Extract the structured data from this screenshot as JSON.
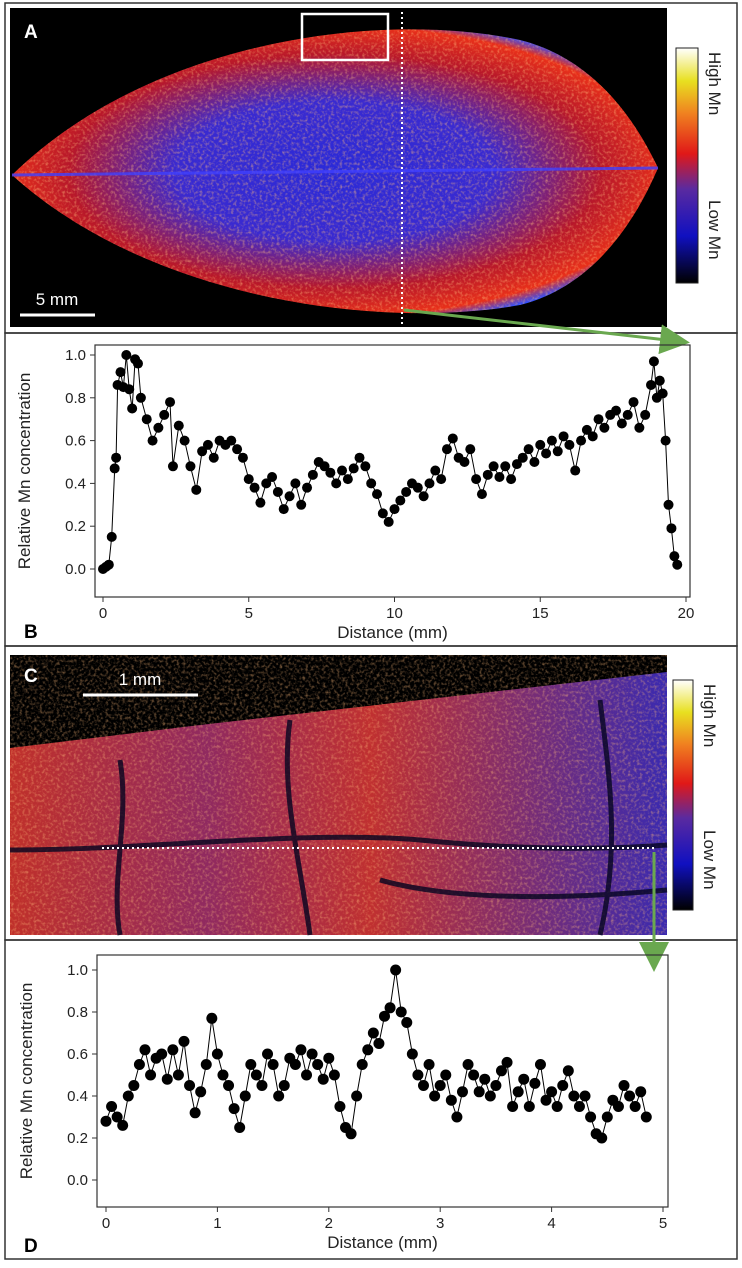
{
  "panels": {
    "labels": [
      "A",
      "B",
      "C",
      "D"
    ],
    "scale_bars": [
      "5 mm",
      "1 mm"
    ],
    "colorbar": {
      "high": "High Mn",
      "low": "Low Mn"
    }
  },
  "chart_data": [
    {
      "type": "scatter-line",
      "xlabel": "Distance (mm)",
      "ylabel": "Relative Mn concentration",
      "color": "#000000",
      "xlim": [
        0,
        20
      ],
      "ylim": [
        0,
        1
      ],
      "xticks": [
        0,
        5,
        10,
        15,
        20
      ],
      "yticks": [
        {
          "value": 0,
          "label": "0.0"
        },
        0.2,
        0.4,
        0.6,
        0.8,
        {
          "value": 1,
          "label": "1.0"
        }
      ],
      "x": [
        0,
        0.1,
        0.2,
        0.3,
        0.4,
        0.45,
        0.5,
        0.6,
        0.7,
        0.8,
        0.9,
        1.0,
        1.1,
        1.2,
        1.3,
        1.5,
        1.7,
        1.9,
        2.1,
        2.3,
        2.4,
        2.6,
        2.8,
        3.0,
        3.2,
        3.4,
        3.6,
        3.8,
        4.0,
        4.2,
        4.4,
        4.6,
        4.8,
        5.0,
        5.2,
        5.4,
        5.6,
        5.8,
        6.0,
        6.2,
        6.4,
        6.6,
        6.8,
        7.0,
        7.2,
        7.4,
        7.6,
        7.8,
        8.0,
        8.2,
        8.4,
        8.6,
        8.8,
        9.0,
        9.2,
        9.4,
        9.6,
        9.8,
        10.0,
        10.2,
        10.4,
        10.6,
        10.8,
        11.0,
        11.2,
        11.4,
        11.6,
        11.8,
        12.0,
        12.2,
        12.4,
        12.6,
        12.8,
        13.0,
        13.2,
        13.4,
        13.6,
        13.8,
        14.0,
        14.2,
        14.4,
        14.6,
        14.8,
        15.0,
        15.2,
        15.4,
        15.6,
        15.8,
        16.0,
        16.2,
        16.4,
        16.6,
        16.8,
        17.0,
        17.2,
        17.4,
        17.6,
        17.8,
        18.0,
        18.2,
        18.4,
        18.6,
        18.8,
        18.9,
        19.0,
        19.1,
        19.2,
        19.3,
        19.4,
        19.5,
        19.6,
        19.7
      ],
      "values": [
        0,
        0.01,
        0.02,
        0.15,
        0.47,
        0.52,
        0.86,
        0.92,
        0.85,
        1.0,
        0.84,
        0.75,
        0.98,
        0.96,
        0.8,
        0.7,
        0.6,
        0.66,
        0.72,
        0.78,
        0.48,
        0.67,
        0.6,
        0.48,
        0.37,
        0.55,
        0.58,
        0.52,
        0.6,
        0.58,
        0.6,
        0.56,
        0.52,
        0.42,
        0.38,
        0.31,
        0.4,
        0.43,
        0.36,
        0.28,
        0.34,
        0.4,
        0.3,
        0.38,
        0.44,
        0.5,
        0.48,
        0.45,
        0.4,
        0.46,
        0.42,
        0.47,
        0.52,
        0.48,
        0.4,
        0.35,
        0.26,
        0.22,
        0.28,
        0.32,
        0.36,
        0.4,
        0.38,
        0.34,
        0.4,
        0.46,
        0.42,
        0.56,
        0.61,
        0.52,
        0.5,
        0.56,
        0.42,
        0.35,
        0.44,
        0.48,
        0.43,
        0.48,
        0.42,
        0.49,
        0.52,
        0.56,
        0.5,
        0.58,
        0.54,
        0.6,
        0.55,
        0.62,
        0.58,
        0.46,
        0.6,
        0.65,
        0.62,
        0.7,
        0.66,
        0.72,
        0.74,
        0.68,
        0.72,
        0.78,
        0.66,
        0.72,
        0.86,
        0.97,
        0.8,
        0.88,
        0.82,
        0.6,
        0.3,
        0.19,
        0.06,
        0.02
      ]
    },
    {
      "type": "scatter-line",
      "xlabel": "Distance (mm)",
      "ylabel": "Relative Mn concentration",
      "color": "#000000",
      "xlim": [
        0,
        5
      ],
      "ylim": [
        0,
        1
      ],
      "xticks": [
        0,
        1,
        2,
        3,
        4,
        5
      ],
      "yticks": [
        {
          "value": 0,
          "label": "0.0"
        },
        0.2,
        0.4,
        0.6,
        0.8,
        {
          "value": 1,
          "label": "1.0"
        }
      ],
      "x": [
        0,
        0.05,
        0.1,
        0.15,
        0.2,
        0.25,
        0.3,
        0.35,
        0.4,
        0.45,
        0.5,
        0.55,
        0.6,
        0.65,
        0.7,
        0.75,
        0.8,
        0.85,
        0.9,
        0.95,
        1.0,
        1.05,
        1.1,
        1.15,
        1.2,
        1.25,
        1.3,
        1.35,
        1.4,
        1.45,
        1.5,
        1.55,
        1.6,
        1.65,
        1.7,
        1.75,
        1.8,
        1.85,
        1.9,
        1.95,
        2.0,
        2.05,
        2.1,
        2.15,
        2.2,
        2.25,
        2.3,
        2.35,
        2.4,
        2.45,
        2.5,
        2.55,
        2.6,
        2.65,
        2.7,
        2.75,
        2.8,
        2.85,
        2.9,
        2.95,
        3.0,
        3.05,
        3.1,
        3.15,
        3.2,
        3.25,
        3.3,
        3.35,
        3.4,
        3.45,
        3.5,
        3.55,
        3.6,
        3.65,
        3.7,
        3.75,
        3.8,
        3.85,
        3.9,
        3.95,
        4.0,
        4.05,
        4.1,
        4.15,
        4.2,
        4.25,
        4.3,
        4.35,
        4.4,
        4.45,
        4.5,
        4.55,
        4.6,
        4.65,
        4.7,
        4.75,
        4.8,
        4.85
      ],
      "values": [
        0.28,
        0.35,
        0.3,
        0.26,
        0.4,
        0.45,
        0.55,
        0.62,
        0.5,
        0.58,
        0.6,
        0.48,
        0.62,
        0.5,
        0.66,
        0.45,
        0.32,
        0.42,
        0.55,
        0.77,
        0.6,
        0.5,
        0.45,
        0.34,
        0.25,
        0.4,
        0.55,
        0.5,
        0.45,
        0.6,
        0.55,
        0.4,
        0.45,
        0.58,
        0.55,
        0.62,
        0.5,
        0.6,
        0.55,
        0.48,
        0.58,
        0.5,
        0.35,
        0.25,
        0.22,
        0.4,
        0.55,
        0.62,
        0.7,
        0.65,
        0.78,
        0.82,
        1.0,
        0.8,
        0.75,
        0.6,
        0.5,
        0.45,
        0.55,
        0.4,
        0.45,
        0.5,
        0.38,
        0.3,
        0.42,
        0.55,
        0.5,
        0.42,
        0.48,
        0.4,
        0.45,
        0.52,
        0.56,
        0.35,
        0.42,
        0.48,
        0.35,
        0.46,
        0.55,
        0.38,
        0.42,
        0.35,
        0.45,
        0.52,
        0.4,
        0.35,
        0.4,
        0.3,
        0.22,
        0.2,
        0.3,
        0.38,
        0.35,
        0.45,
        0.4,
        0.35,
        0.42,
        0.3
      ]
    }
  ]
}
